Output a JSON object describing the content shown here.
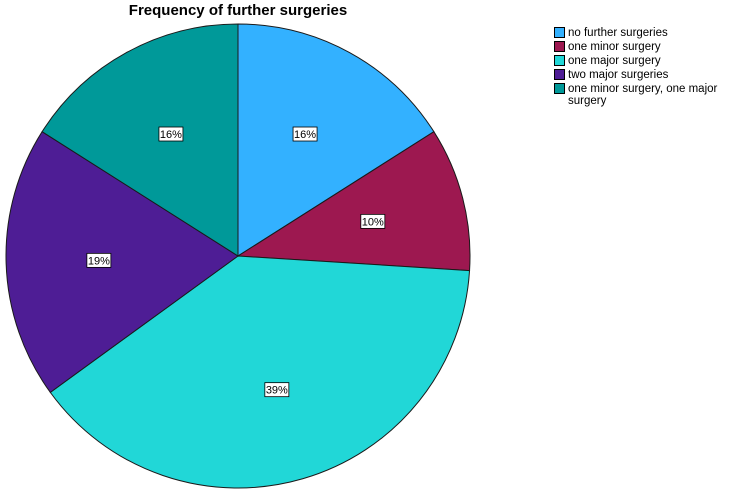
{
  "chart_data": {
    "type": "pie",
    "title": "Frequency of further surgeries",
    "slices": [
      {
        "label": "no further surgeries",
        "value": 16,
        "display": "16%",
        "color": "#33B1FF"
      },
      {
        "label": "one minor surgery",
        "value": 10,
        "display": "10%",
        "color": "#9D1850"
      },
      {
        "label": "one major surgery",
        "value": 39,
        "display": "39%",
        "color": "#21D7D7"
      },
      {
        "label": "two major surgeries",
        "value": 19,
        "display": "19%",
        "color": "#4E1D95"
      },
      {
        "label": "one minor surgery, one major surgery",
        "value": 16,
        "display": "16%",
        "color": "#009999"
      }
    ],
    "legend_position": "top-right",
    "start": "12 o'clock",
    "direction": "clockwise"
  }
}
